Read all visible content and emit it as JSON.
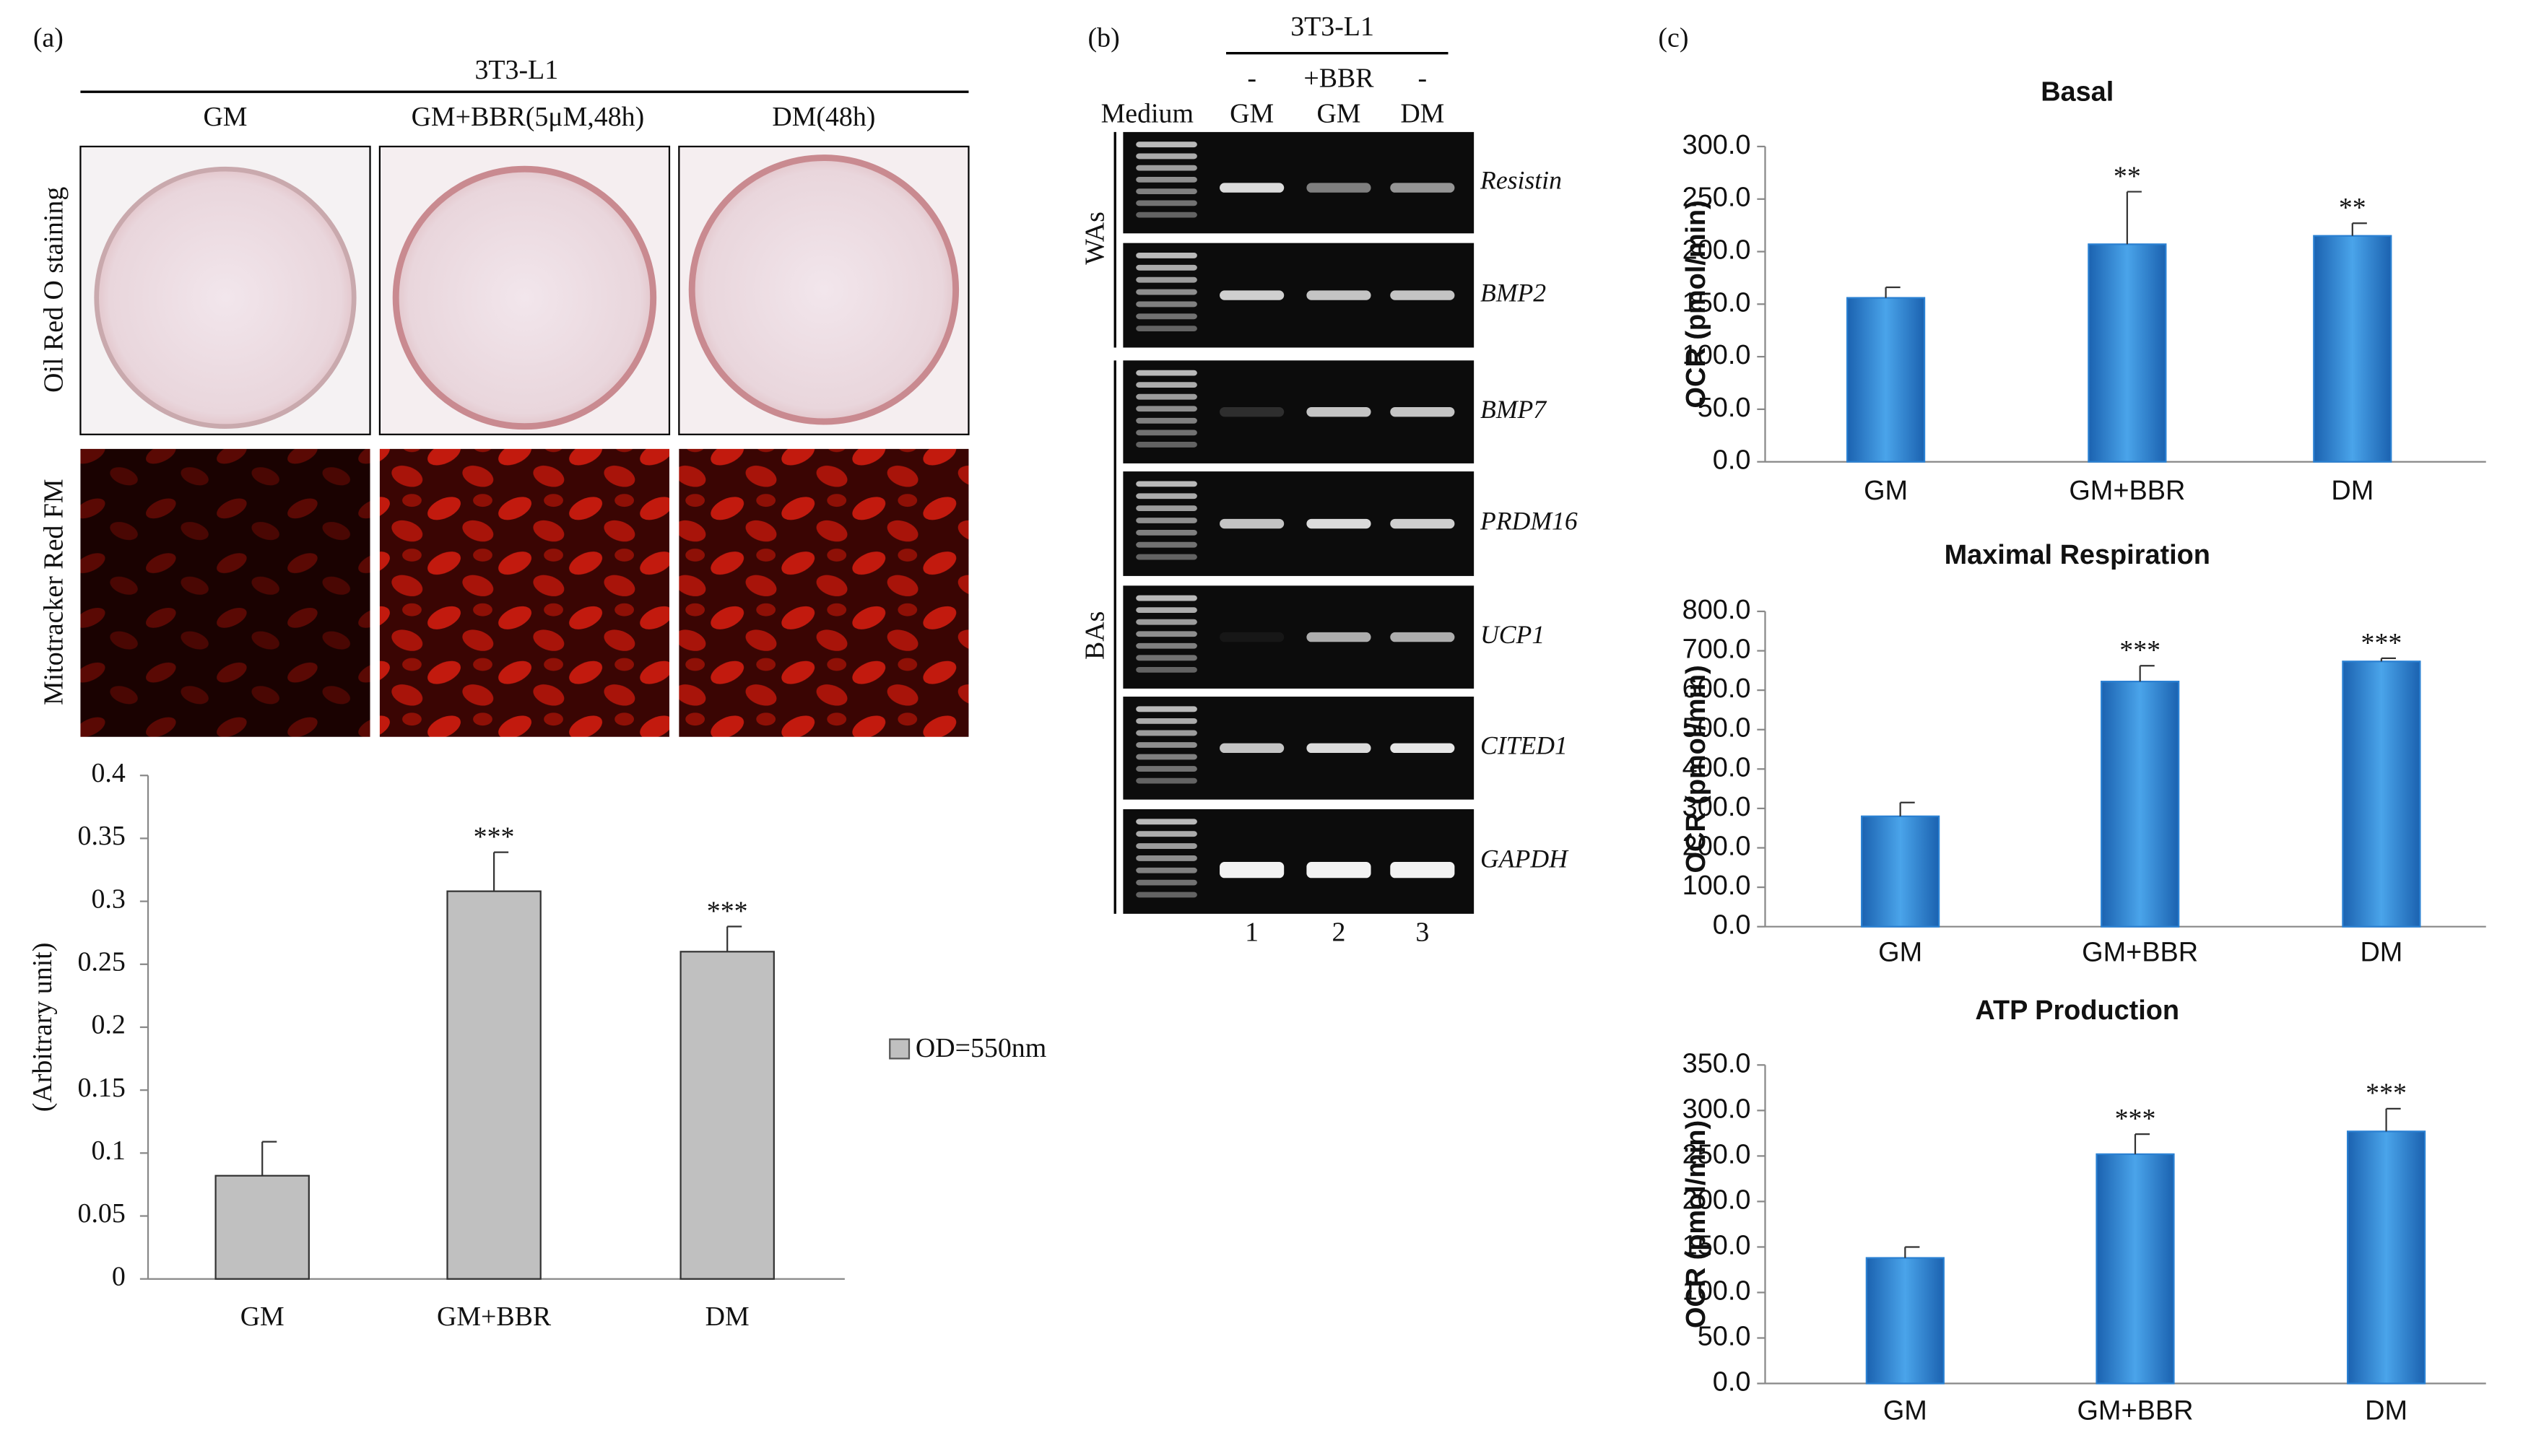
{
  "chart_data": [
    {
      "type": "bar",
      "ylabel": "(Arbitrary unit)",
      "categories": [
        "GM",
        "GM+BBR",
        "DM"
      ],
      "series": [
        {
          "name": "OD=550nm",
          "color": "#c0c0c0",
          "values": [
            0.082,
            0.308,
            0.26
          ],
          "errors": [
            0.027,
            0.031,
            0.02
          ]
        }
      ],
      "significance": [
        null,
        "***",
        "***"
      ],
      "ylim": [
        0,
        0.4
      ],
      "yticks": [
        0,
        0.05,
        0.1,
        0.15,
        0.2,
        0.25,
        0.3,
        0.35,
        0.4
      ],
      "legend": "right"
    },
    {
      "type": "bar",
      "title": "Basal",
      "ylabel": "OCR (pmol/min)",
      "categories": [
        "GM",
        "GM+BBR",
        "DM"
      ],
      "color": "#2a80d2",
      "values": [
        156,
        207,
        215
      ],
      "errors": [
        10,
        50,
        12
      ],
      "significance": [
        null,
        "**",
        "**"
      ],
      "ylim": [
        0,
        300
      ],
      "yticks": [
        {
          "value": 0,
          "label": "0.0"
        },
        {
          "value": 50,
          "label": "50.0"
        },
        {
          "value": 100,
          "label": "100.0"
        },
        {
          "value": 150,
          "label": "150.0"
        },
        {
          "value": 200,
          "label": "200.0"
        },
        {
          "value": 250,
          "label": "250.0"
        },
        {
          "value": 300,
          "label": "300.0"
        }
      ]
    },
    {
      "type": "bar",
      "title": "Maximal Respiration",
      "ylabel": "OCR (pmol/min)",
      "categories": [
        "GM",
        "GM+BBR",
        "DM"
      ],
      "color": "#2a80d2",
      "values": [
        280,
        622,
        673
      ],
      "errors": [
        35,
        40,
        8
      ],
      "significance": [
        null,
        "***",
        "***"
      ],
      "ylim": [
        0,
        800
      ],
      "yticks": [
        {
          "value": 0,
          "label": "0.0"
        },
        {
          "value": 100,
          "label": "100.0"
        },
        {
          "value": 200,
          "label": "200.0"
        },
        {
          "value": 300,
          "label": "300.0"
        },
        {
          "value": 400,
          "label": "400.0"
        },
        {
          "value": 500,
          "label": "500.0"
        },
        {
          "value": 600,
          "label": "600.0"
        },
        {
          "value": 700,
          "label": "700.0"
        },
        {
          "value": 800,
          "label": "800.0"
        }
      ]
    },
    {
      "type": "bar",
      "title": "ATP Production",
      "ylabel": "OCR (pmol/min)",
      "categories": [
        "GM",
        "GM+BBR",
        "DM"
      ],
      "color": "#2a80d2",
      "values": [
        138,
        252,
        277
      ],
      "errors": [
        12,
        22,
        25
      ],
      "significance": [
        null,
        "***",
        "***"
      ],
      "ylim": [
        0,
        350
      ],
      "yticks": [
        {
          "value": 0,
          "label": "0.0"
        },
        {
          "value": 50,
          "label": "50.0"
        },
        {
          "value": 100,
          "label": "100.0"
        },
        {
          "value": 150,
          "label": "150.0"
        },
        {
          "value": 200,
          "label": "200.0"
        },
        {
          "value": 250,
          "label": "250.0"
        },
        {
          "value": 300,
          "label": "300.0"
        },
        {
          "value": 350,
          "label": "350.0"
        }
      ]
    }
  ],
  "figure": {
    "panel_labels": [
      "(a)",
      "(b)",
      "(c)"
    ],
    "a": {
      "cell_line": "3T3-L1",
      "columns": [
        "GM",
        "GM+BBR(5μM,48h)",
        "DM(48h)"
      ],
      "rows": [
        "Oil Red O staining",
        "Mitotracker Red FM"
      ]
    },
    "b": {
      "cell_line": "3T3-L1",
      "treatment": [
        "-",
        "+BBR",
        "-"
      ],
      "ladder": "Medium",
      "lanes": [
        "GM",
        "GM",
        "DM"
      ],
      "groups": [
        "WAs",
        "BAs"
      ],
      "genes": [
        "Resistin",
        "BMP2",
        "BMP7",
        "PRDM16",
        "UCP1",
        "CITED1",
        "GAPDH"
      ],
      "lane_numbers": [
        1,
        2,
        3
      ]
    }
  }
}
